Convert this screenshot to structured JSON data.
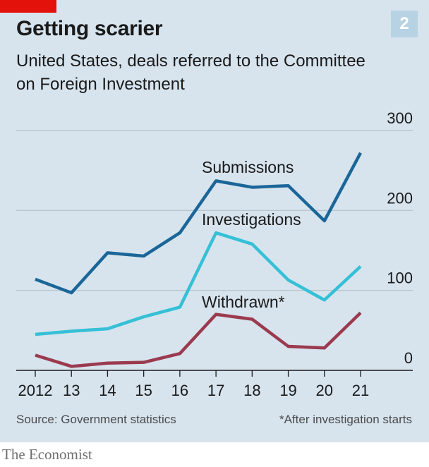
{
  "header": {
    "title": "Getting scarier",
    "subtitle": "United States, deals referred to the Committee on Foreign Investment",
    "chart_number": "2"
  },
  "footer": {
    "source": "Source: Government statistics",
    "note": "*After investigation starts",
    "brand": "The Economist"
  },
  "colors": {
    "background": "#d7e4ee",
    "accent_tag": "#e3120b",
    "submissions": "#1b6698",
    "investigations": "#35c0d6",
    "withdrawn": "#9b3a4f",
    "gridline": "#b6c0c8"
  },
  "chart_data": {
    "type": "line",
    "title": "Getting scarier",
    "subtitle": "United States, deals referred to the Committee on Foreign Investment",
    "x": [
      2012,
      2013,
      2014,
      2015,
      2016,
      2017,
      2018,
      2019,
      2020,
      2021
    ],
    "x_tick_labels": [
      "2012",
      "13",
      "14",
      "15",
      "16",
      "17",
      "18",
      "19",
      "20",
      "21"
    ],
    "ylim": [
      0,
      300
    ],
    "y_ticks": [
      0,
      100,
      200,
      300
    ],
    "y_axis_side": "right",
    "grid": true,
    "legend": "inline labels",
    "series": [
      {
        "name": "Submissions",
        "color": "#1b6698",
        "values": [
          114,
          97,
          147,
          143,
          172,
          237,
          229,
          231,
          187,
          272
        ]
      },
      {
        "name": "Investigations",
        "color": "#35c0d6",
        "values": [
          45,
          49,
          52,
          67,
          79,
          172,
          158,
          113,
          88,
          130
        ]
      },
      {
        "name": "Withdrawn*",
        "color": "#9b3a4f",
        "values": [
          19,
          5,
          9,
          10,
          21,
          70,
          64,
          30,
          28,
          72
        ]
      }
    ]
  }
}
